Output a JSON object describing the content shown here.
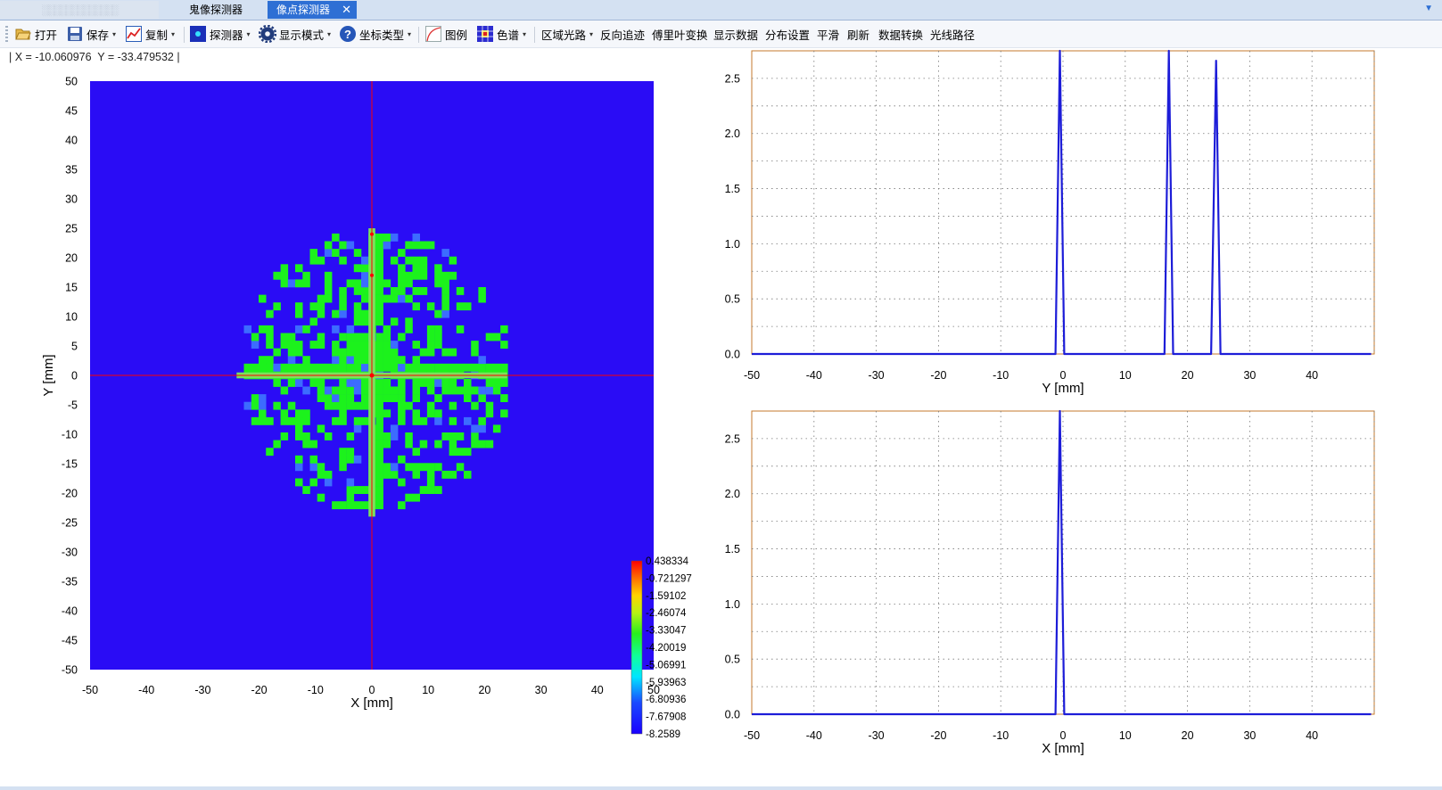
{
  "tabs": {
    "items": [
      {
        "label": "鬼像探测器"
      },
      {
        "label": "像点探测器",
        "active": true
      }
    ],
    "blurred_tab_text": "░░░░░░░░░░░░░",
    "close_glyph": "✕",
    "dropdown_glyph": "▼"
  },
  "toolbar": {
    "open": "打开",
    "save": "保存",
    "copy": "复制",
    "detector": "探测器",
    "display_mode": "显示模式",
    "coord_type": "坐标类型",
    "legend": "图例",
    "colormap": "色谱",
    "region_path": "区域光路",
    "reverse_trace": "反向追迹",
    "fourier": "傅里叶变换",
    "show_data": "显示数据",
    "distribution": "分布设置",
    "smooth": "平滑",
    "refresh": "刷新",
    "data_convert": "数据转换",
    "ray_path": "光线路径",
    "dropdown_arrow": "▾"
  },
  "status": {
    "readout": "| X = -10.060976  Y = -33.479532 |"
  },
  "colors": {
    "background_blue": "#2a0cf5",
    "spot_green": "#1cf21c",
    "crosshair_red": "#ff0000",
    "profile_line": "#1d1dd8",
    "plot_border": "#c47a2c"
  },
  "chart_data": [
    {
      "type": "heatmap",
      "title": "",
      "xlabel": "X [mm]",
      "ylabel": "Y [mm]",
      "xlim": [
        -50,
        50
      ],
      "ylim": [
        -50,
        50
      ],
      "x_ticks": [
        -50,
        -40,
        -30,
        -20,
        -10,
        0,
        10,
        20,
        30,
        40,
        50
      ],
      "y_ticks": [
        50,
        45,
        40,
        35,
        30,
        25,
        20,
        15,
        10,
        5,
        0,
        -5,
        -10,
        -15,
        -20,
        -25,
        -30,
        -35,
        -40,
        -45,
        -50
      ],
      "crosshair": [
        0,
        0
      ],
      "spot_radius_mm": 24,
      "colorbar_labels": [
        "0.438334",
        "0.721297",
        "1.59102",
        "2.46074",
        "3.33047",
        "4.20019",
        "5.06991",
        "5.93963",
        "6.80936",
        "7.67908",
        "8.2589"
      ],
      "colorbar_labels_shown": [
        "0.438334",
        "-0.721297",
        "-1.59102",
        "-2.46074",
        "-3.33047",
        "-4.20019",
        "-5.06991",
        "-5.93963",
        "-6.80936",
        "-7.67908",
        "-8.2589"
      ]
    },
    {
      "type": "line",
      "xlabel": "Y [mm]",
      "ylabel": "",
      "xlim": [
        -50,
        50
      ],
      "ylim": [
        0,
        2.75
      ],
      "x_ticks": [
        -50,
        -40,
        -30,
        -20,
        -10,
        0,
        10,
        20,
        30,
        40
      ],
      "y_ticks": [
        "0.0",
        "0.5",
        "1.0",
        "1.5",
        "2.0",
        "2.5"
      ],
      "grid": true,
      "series": [
        {
          "x": [
            -50,
            -1.2,
            -0.5,
            0.2,
            1.0,
            16.3,
            17.0,
            17.7,
            18.5,
            23.8,
            24.6,
            25.3,
            26.0,
            49.5
          ],
          "y": [
            0,
            0,
            2.75,
            0,
            0,
            0,
            2.75,
            0,
            0,
            0,
            2.66,
            0,
            0,
            0
          ]
        }
      ]
    },
    {
      "type": "line",
      "xlabel": "X [mm]",
      "ylabel": "",
      "xlim": [
        -50,
        50
      ],
      "ylim": [
        0,
        2.75
      ],
      "x_ticks": [
        -50,
        -40,
        -30,
        -20,
        -10,
        0,
        10,
        20,
        30,
        40
      ],
      "y_ticks": [
        "0.0",
        "0.5",
        "1.0",
        "1.5",
        "2.0",
        "2.5"
      ],
      "grid": true,
      "series": [
        {
          "x": [
            -50,
            -1.2,
            -0.5,
            0.2,
            1.0,
            49.5
          ],
          "y": [
            0,
            0,
            2.75,
            0,
            0,
            0
          ]
        }
      ]
    }
  ]
}
